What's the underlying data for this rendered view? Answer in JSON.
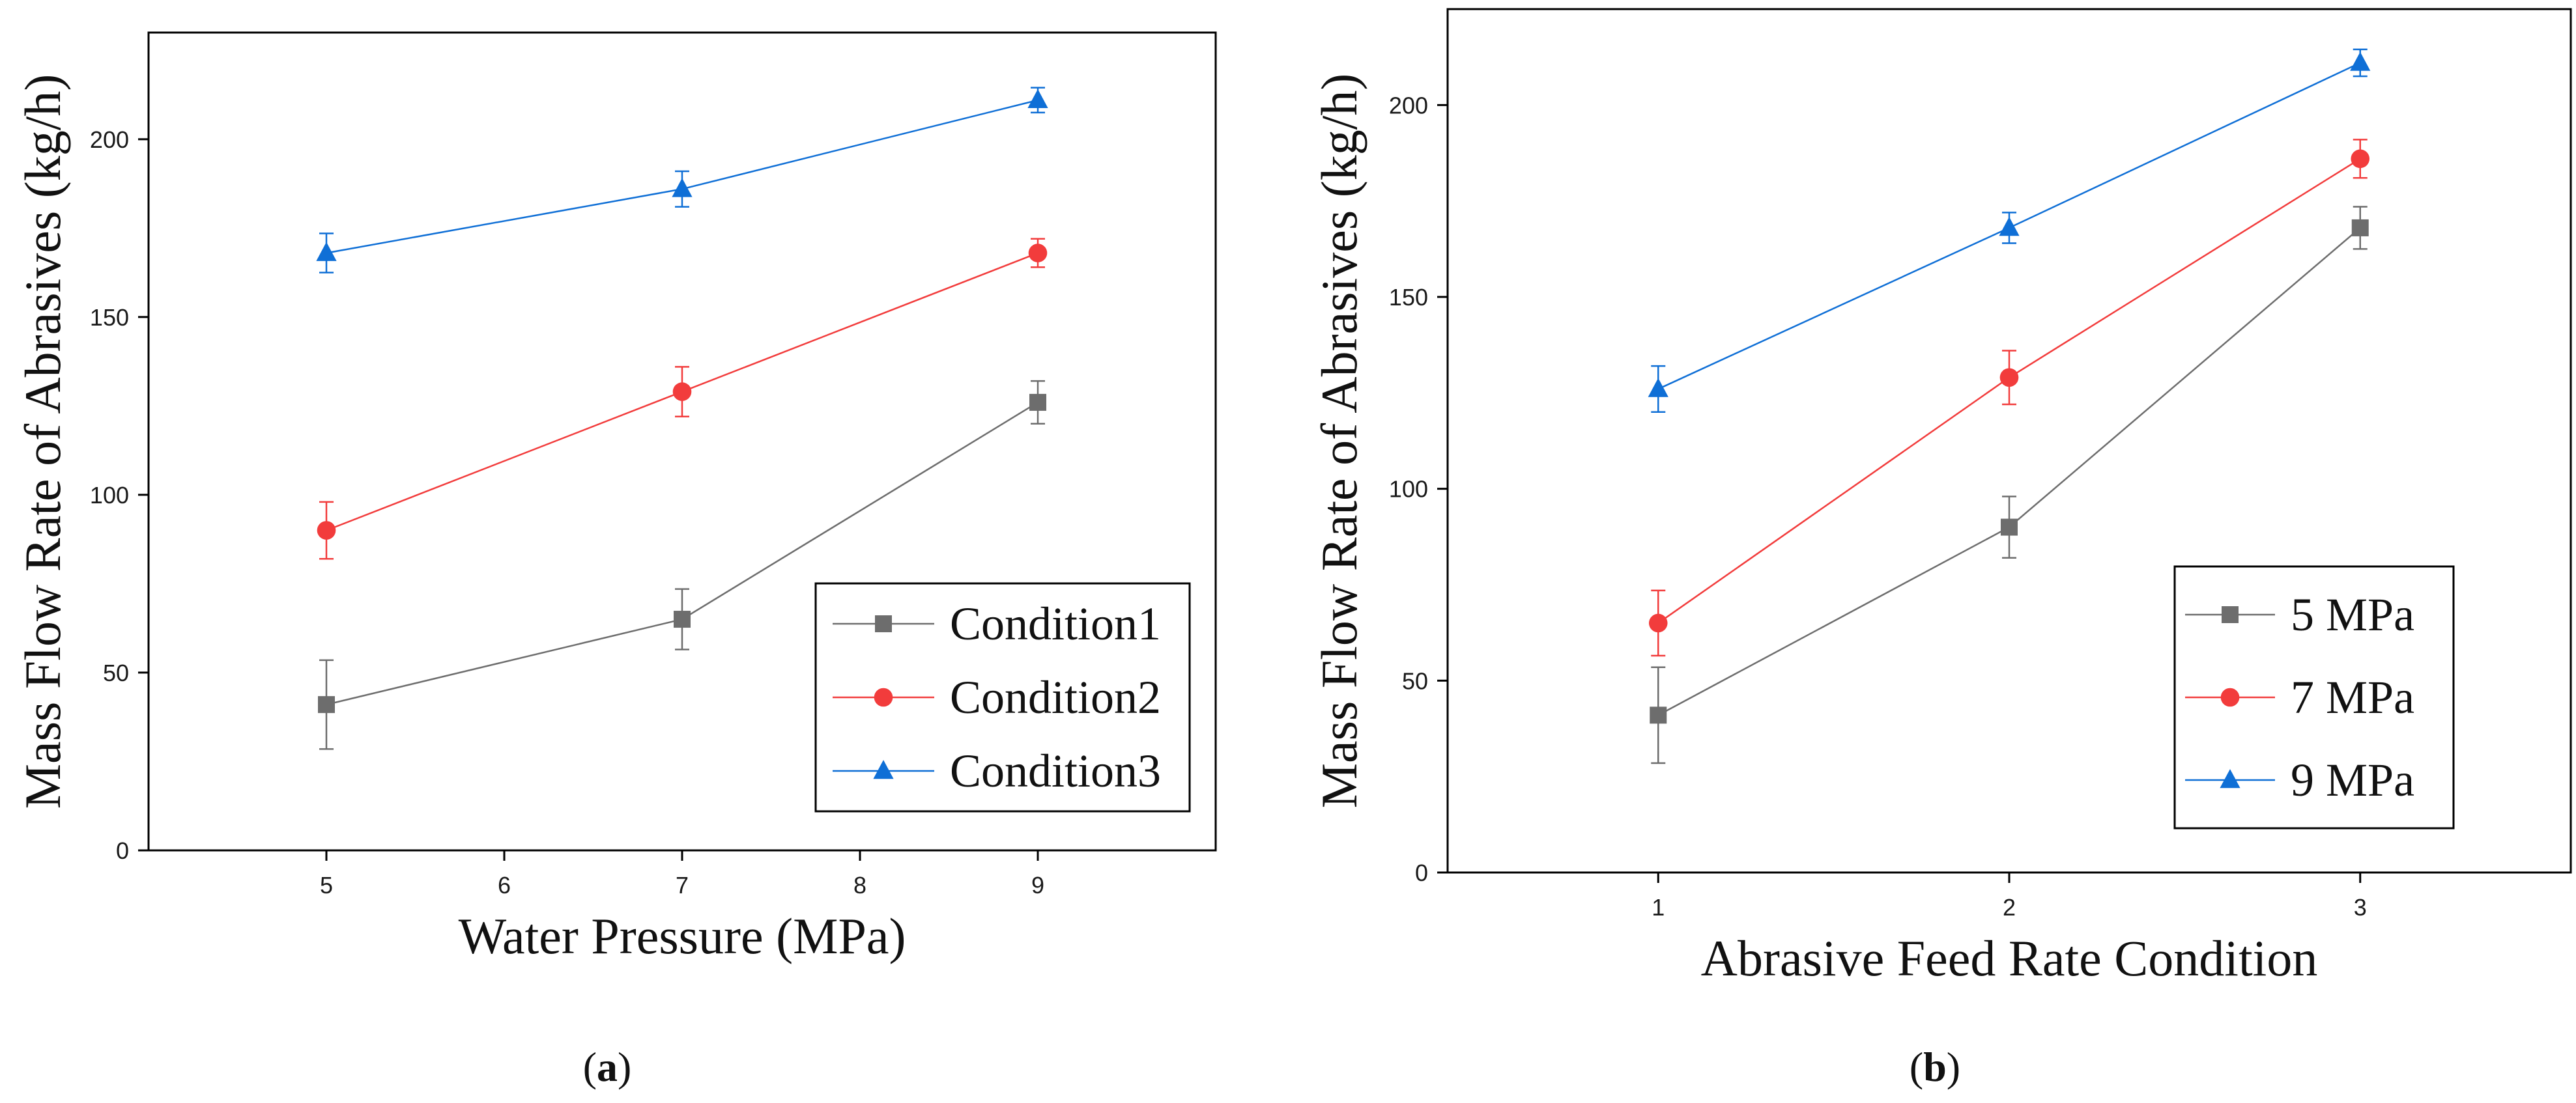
{
  "chart_data": [
    {
      "type": "line",
      "panel_label": "a",
      "xlabel": "Water Pressure (MPa)",
      "ylabel": "Mass Flow Rate of Abrasives (kg/h)",
      "xlim": [
        4,
        10
      ],
      "ylim": [
        0,
        230
      ],
      "xticks": [
        5,
        6,
        7,
        8,
        9
      ],
      "yticks": [
        0,
        50,
        100,
        150,
        200
      ],
      "legend_position": "bottom-right",
      "series": [
        {
          "name": "Condition1",
          "color": "#6d6d6d",
          "marker": "square",
          "x": [
            5,
            7,
            9
          ],
          "y": [
            41,
            65,
            126
          ],
          "error": [
            12.5,
            8.5,
            6
          ]
        },
        {
          "name": "Condition2",
          "color": "#f23c3c",
          "marker": "circle",
          "x": [
            5,
            7,
            9
          ],
          "y": [
            90,
            129,
            168
          ],
          "error": [
            8,
            7,
            4
          ]
        },
        {
          "name": "Condition3",
          "color": "#0f6fd6",
          "marker": "triangle",
          "x": [
            5,
            7,
            9
          ],
          "y": [
            168,
            186,
            211
          ],
          "error": [
            5.5,
            5,
            3.5
          ]
        }
      ]
    },
    {
      "type": "line",
      "panel_label": "b",
      "xlabel": "Abrasive Feed Rate Condition",
      "ylabel": "Mass Flow Rate of Abrasives (kg/h)",
      "xlim": [
        0.4,
        3.6
      ],
      "ylim": [
        0,
        225
      ],
      "xticks": [
        1,
        2,
        3
      ],
      "yticks": [
        0,
        50,
        100,
        150,
        200
      ],
      "legend_position": "bottom-right",
      "series": [
        {
          "name": "5 MPa",
          "color": "#6d6d6d",
          "marker": "square",
          "x": [
            1,
            2,
            3
          ],
          "y": [
            41,
            90,
            168
          ],
          "error": [
            12.5,
            8,
            5.5
          ]
        },
        {
          "name": "7 MPa",
          "color": "#f23c3c",
          "marker": "circle",
          "x": [
            1,
            2,
            3
          ],
          "y": [
            65,
            129,
            186
          ],
          "error": [
            8.5,
            7,
            5
          ]
        },
        {
          "name": "9 MPa",
          "color": "#0f6fd6",
          "marker": "triangle",
          "x": [
            1,
            2,
            3
          ],
          "y": [
            126,
            168,
            211
          ],
          "error": [
            6,
            4,
            3.5
          ]
        }
      ]
    }
  ]
}
